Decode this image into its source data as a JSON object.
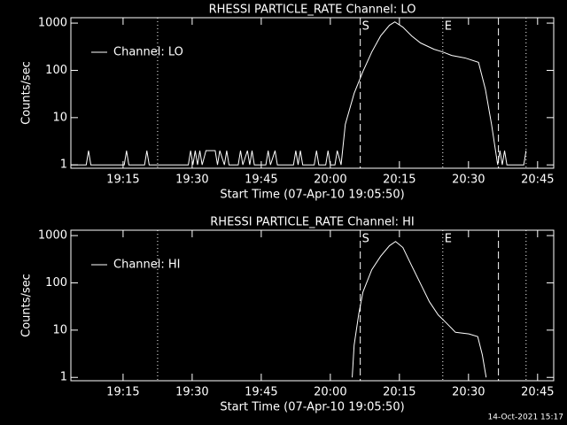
{
  "footer": "14-Oct-2021 15:17",
  "chart_data": [
    {
      "type": "line",
      "title": "RHESSI PARTICLE_RATE Channel: LO",
      "xlabel": "Start Time (07-Apr-10 19:05:50)",
      "ylabel": "Counts/sec",
      "log_y": true,
      "xlim": [
        "19:03:40",
        "20:48:30"
      ],
      "ylim": [
        0.85,
        1300
      ],
      "xticks": [
        "19:15",
        "19:30",
        "19:45",
        "20:00",
        "20:15",
        "20:30",
        "20:45"
      ],
      "yticks": [
        1,
        10,
        100,
        1000
      ],
      "markers": [
        {
          "x": "19:22:30",
          "style": "dotted"
        },
        {
          "x": "20:06:30",
          "style": "dashed",
          "label": "S"
        },
        {
          "x": "20:24:25",
          "style": "dotted",
          "label": "E"
        },
        {
          "x": "20:36:30",
          "style": "dashed"
        },
        {
          "x": "20:42:30",
          "style": "dotted"
        }
      ],
      "series": [
        {
          "name": "Channel: LO",
          "color": "#ffffff",
          "x": [
            "19:03:40",
            "19:07:00",
            "19:07:30",
            "19:08:00",
            "19:15:15",
            "19:15:45",
            "19:16:15",
            "19:19:40",
            "19:20:10",
            "19:20:40",
            "19:29:10",
            "19:29:40",
            "19:30:10",
            "19:30:40",
            "19:31:10",
            "19:31:40",
            "19:32:10",
            "19:33:00",
            "19:35:00",
            "19:35:30",
            "19:36:00",
            "19:37:00",
            "19:37:30",
            "19:38:00",
            "19:40:00",
            "19:40:30",
            "19:41:00",
            "19:42:00",
            "19:42:30",
            "19:43:00",
            "19:43:30",
            "19:46:00",
            "19:46:30",
            "19:47:00",
            "19:48:00",
            "19:48:30",
            "19:52:00",
            "19:52:30",
            "19:53:00",
            "19:53:30",
            "19:54:00",
            "19:56:30",
            "19:57:00",
            "19:57:30",
            "19:59:00",
            "19:59:30",
            "20:00:00",
            "20:01:00",
            "20:01:30",
            "20:02:20",
            "20:03:15",
            "20:05:10",
            "20:07:05",
            "20:09:00",
            "20:10:55",
            "20:12:50",
            "20:14:00",
            "20:15:45",
            "20:17:40",
            "20:19:35",
            "20:22:30",
            "20:24:25",
            "20:26:20",
            "20:29:15",
            "20:32:10",
            "20:33:40",
            "20:35:00",
            "20:36:20",
            "20:36:50",
            "20:37:20",
            "20:37:50",
            "20:38:20",
            "20:42:00",
            "20:42:30"
          ],
          "values": [
            1,
            1,
            2,
            1,
            1,
            2,
            1,
            1,
            2,
            1,
            1,
            2,
            1,
            2,
            1,
            2,
            1,
            2,
            2,
            1,
            2,
            1,
            2,
            1,
            1,
            2,
            1,
            2,
            1,
            2,
            1,
            1,
            2,
            1,
            2,
            1,
            1,
            2,
            1,
            2,
            1,
            1,
            2,
            1,
            1,
            2,
            1,
            1,
            2,
            1,
            7.2,
            32.6,
            95,
            245,
            535,
            900,
            1060,
            820,
            535,
            380,
            280,
            245,
            207,
            183,
            148,
            40,
            7.2,
            1,
            2,
            1,
            2,
            1,
            1,
            2
          ]
        }
      ]
    },
    {
      "type": "line",
      "title": "RHESSI PARTICLE_RATE Channel: HI",
      "xlabel": "Start Time (07-Apr-10 19:05:50)",
      "ylabel": "Counts/sec",
      "log_y": true,
      "xlim": [
        "19:03:40",
        "20:48:30"
      ],
      "ylim": [
        0.85,
        1300
      ],
      "xticks": [
        "19:15",
        "19:30",
        "19:45",
        "20:00",
        "20:15",
        "20:30",
        "20:45"
      ],
      "yticks": [
        1,
        10,
        100,
        1000
      ],
      "markers": [
        {
          "x": "19:22:30",
          "style": "dotted"
        },
        {
          "x": "20:06:30",
          "style": "dashed",
          "label": "S"
        },
        {
          "x": "20:24:25",
          "style": "dotted",
          "label": "E"
        },
        {
          "x": "20:36:30",
          "style": "dashed"
        },
        {
          "x": "20:42:30",
          "style": "dotted"
        }
      ],
      "series": [
        {
          "name": "Channel: HI",
          "color": "#ffffff",
          "x": [
            "20:04:45",
            "20:05:10",
            "20:06:10",
            "20:07:05",
            "20:09:00",
            "20:10:55",
            "20:12:50",
            "20:14:10",
            "20:15:45",
            "20:17:40",
            "20:19:35",
            "20:21:30",
            "20:23:25",
            "20:25:15",
            "20:27:10",
            "20:30:05",
            "20:32:00",
            "20:33:00",
            "20:33:50"
          ],
          "values": [
            1,
            4.8,
            21.9,
            64,
            190,
            365,
            610,
            750,
            560,
            230,
            96,
            40,
            21,
            14,
            9,
            8.3,
            7.3,
            3,
            1
          ]
        }
      ]
    }
  ]
}
